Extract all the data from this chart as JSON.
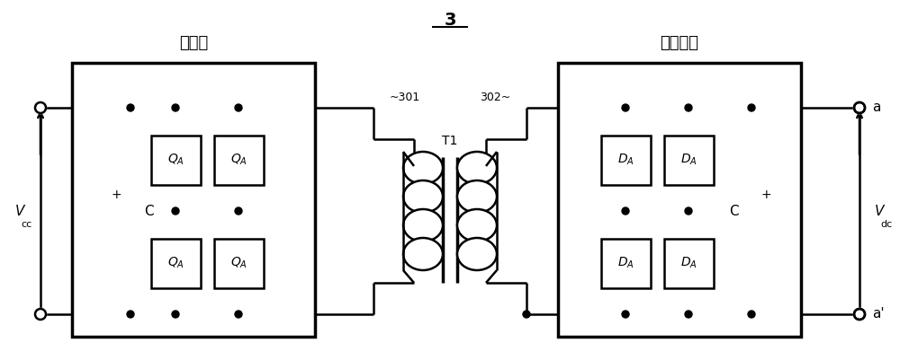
{
  "title": "3",
  "bg_color": "#ffffff",
  "line_color": "#000000",
  "fig_width": 10.0,
  "fig_height": 4.01,
  "left_label": "逆变器",
  "right_label": "整流电路",
  "vcc_label": "V",
  "vcc_sub": "cc",
  "vdc_label": "V",
  "vdc_sub": "dc",
  "label_301": "301",
  "label_302": "302",
  "label_T1": "T1",
  "node_a": "a",
  "node_a_prime": "a'",
  "C_label": "C"
}
